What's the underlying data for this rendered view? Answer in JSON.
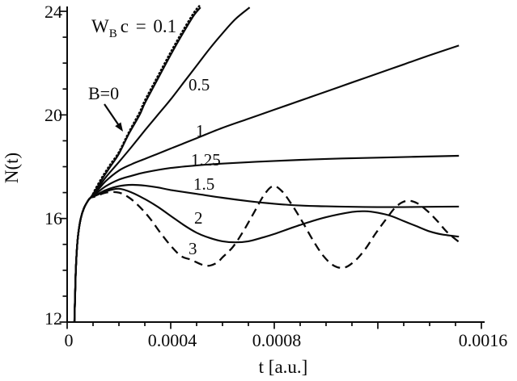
{
  "figure": {
    "background": "#ffffff",
    "ink_color": "#0a0a0a"
  },
  "chart_data": {
    "type": "line",
    "title": "",
    "xlabel": "t [a.u.]",
    "ylabel": "N(t)",
    "xlim": [
      0,
      0.0016
    ],
    "ylim": [
      12,
      24
    ],
    "grid": false,
    "legend_position": "inline-curve-labels",
    "x_major_ticks": [
      0,
      0.0004,
      0.0008,
      0.0012,
      0.0016
    ],
    "x_minor_step": 0.0001,
    "x_tick_labels": [
      "0",
      "0.0004",
      "0.0008",
      "0.0016"
    ],
    "x_labeled_tick_values": [
      0,
      0.0004,
      0.0008,
      0.0016
    ],
    "y_major_ticks": [
      12,
      16,
      20,
      24
    ],
    "y_minor_step": 1,
    "y_tick_labels": [
      "12",
      "16",
      "20",
      "24"
    ],
    "annotations": {
      "wb_equation": {
        "base": "W",
        "subscript": "B",
        "rest": "c = 0.1"
      },
      "b_zero": {
        "text": "B=0",
        "has_arrow": true
      }
    },
    "series": [
      {
        "key": "b0",
        "name": "B=0",
        "wbc": null,
        "style": "solid",
        "label": "B=0",
        "points": [
          [
            2.8e-05,
            12.0
          ],
          [
            3.05e-05,
            13.0
          ],
          [
            3.35e-05,
            14.0
          ],
          [
            3.75e-05,
            14.8
          ],
          [
            4.35e-05,
            15.45
          ],
          [
            5.25e-05,
            16.0
          ],
          [
            6.5e-05,
            16.4
          ],
          [
            8e-05,
            16.68
          ],
          [
            9e-05,
            16.8
          ],
          [
            0.00011,
            17.1
          ],
          [
            0.00014,
            17.6
          ],
          [
            0.00017,
            18.05
          ],
          [
            0.0002,
            18.5
          ],
          [
            0.00024,
            19.3
          ],
          [
            0.00028,
            20.0
          ],
          [
            0.0003,
            20.45
          ],
          [
            0.00034,
            21.2
          ],
          [
            0.00038,
            21.95
          ],
          [
            0.00041,
            22.5
          ],
          [
            0.00045,
            23.2
          ],
          [
            0.00049,
            23.85
          ],
          [
            0.000515,
            24.15
          ]
        ]
      },
      {
        "key": "wbc01",
        "name": "WBc = 0.1",
        "wbc": 0.1,
        "style": "dotted",
        "label": "0.1",
        "points": [
          [
            0.0001,
            16.95
          ],
          [
            0.00011,
            17.15
          ],
          [
            0.00014,
            17.67
          ],
          [
            0.00017,
            18.13
          ],
          [
            0.0002,
            18.56
          ],
          [
            0.00024,
            19.36
          ],
          [
            0.00028,
            20.1
          ],
          [
            0.0003,
            20.55
          ],
          [
            0.00034,
            21.3
          ],
          [
            0.00038,
            22.05
          ],
          [
            0.00041,
            22.6
          ],
          [
            0.00045,
            23.3
          ],
          [
            0.00049,
            23.95
          ],
          [
            0.00051,
            24.2
          ]
        ]
      },
      {
        "key": "wbc05",
        "name": "WBc = 0.5",
        "wbc": 0.5,
        "style": "solid",
        "label": "0.5",
        "points": [
          [
            2.8e-05,
            12.0
          ],
          [
            3.05e-05,
            13.0
          ],
          [
            3.35e-05,
            14.0
          ],
          [
            3.75e-05,
            14.8
          ],
          [
            4.35e-05,
            15.45
          ],
          [
            5.25e-05,
            16.0
          ],
          [
            6.5e-05,
            16.4
          ],
          [
            8e-05,
            16.68
          ],
          [
            9e-05,
            16.8
          ],
          [
            0.00011,
            17.05
          ],
          [
            0.00015,
            17.6
          ],
          [
            0.0002,
            18.18
          ],
          [
            0.00025,
            18.78
          ],
          [
            0.0003,
            19.4
          ],
          [
            0.00035,
            20.0
          ],
          [
            0.0004,
            20.6
          ],
          [
            0.00045,
            21.25
          ],
          [
            0.0005,
            21.9
          ],
          [
            0.00055,
            22.55
          ],
          [
            0.0006,
            23.15
          ],
          [
            0.00065,
            23.7
          ],
          [
            0.000705,
            24.15
          ]
        ]
      },
      {
        "key": "wbc1",
        "name": "WBc = 1",
        "wbc": 1,
        "style": "solid",
        "label": "1",
        "points": [
          [
            2.8e-05,
            12.0
          ],
          [
            3.05e-05,
            13.0
          ],
          [
            3.35e-05,
            14.0
          ],
          [
            3.75e-05,
            14.8
          ],
          [
            4.35e-05,
            15.45
          ],
          [
            5.25e-05,
            16.0
          ],
          [
            6.5e-05,
            16.4
          ],
          [
            8e-05,
            16.68
          ],
          [
            9e-05,
            16.8
          ],
          [
            0.00011,
            17.0
          ],
          [
            0.00015,
            17.45
          ],
          [
            0.0002,
            17.85
          ],
          [
            0.00025,
            18.1
          ],
          [
            0.0003,
            18.3
          ],
          [
            0.00035,
            18.5
          ],
          [
            0.0004,
            18.7
          ],
          [
            0.00045,
            18.9
          ],
          [
            0.0005,
            19.1
          ],
          [
            0.0006,
            19.5
          ],
          [
            0.0007,
            19.85
          ],
          [
            0.0008,
            20.2
          ],
          [
            0.0009,
            20.55
          ],
          [
            0.001,
            20.9
          ],
          [
            0.0011,
            21.25
          ],
          [
            0.0012,
            21.6
          ],
          [
            0.0013,
            21.95
          ],
          [
            0.0014,
            22.3
          ],
          [
            0.001513,
            22.68
          ]
        ]
      },
      {
        "key": "wbc125",
        "name": "WBc = 1.25",
        "wbc": 1.25,
        "style": "solid",
        "label": "1.25",
        "points": [
          [
            2.8e-05,
            12.0
          ],
          [
            3.05e-05,
            13.0
          ],
          [
            3.35e-05,
            14.0
          ],
          [
            3.75e-05,
            14.8
          ],
          [
            4.35e-05,
            15.45
          ],
          [
            5.25e-05,
            16.0
          ],
          [
            6.5e-05,
            16.4
          ],
          [
            8e-05,
            16.68
          ],
          [
            9e-05,
            16.8
          ],
          [
            0.00011,
            16.95
          ],
          [
            0.00015,
            17.25
          ],
          [
            0.0002,
            17.5
          ],
          [
            0.00025,
            17.65
          ],
          [
            0.0003,
            17.78
          ],
          [
            0.0004,
            17.95
          ],
          [
            0.0005,
            18.05
          ],
          [
            0.0006,
            18.12
          ],
          [
            0.0008,
            18.22
          ],
          [
            0.001,
            18.3
          ],
          [
            0.0012,
            18.35
          ],
          [
            0.001513,
            18.42
          ]
        ]
      },
      {
        "key": "wbc15",
        "name": "WBc = 1.5",
        "wbc": 1.5,
        "style": "solid",
        "label": "1.5",
        "points": [
          [
            2.8e-05,
            12.0
          ],
          [
            3.05e-05,
            13.0
          ],
          [
            3.35e-05,
            14.0
          ],
          [
            3.75e-05,
            14.8
          ],
          [
            4.35e-05,
            15.45
          ],
          [
            5.25e-05,
            16.0
          ],
          [
            6.5e-05,
            16.4
          ],
          [
            8e-05,
            16.68
          ],
          [
            9e-05,
            16.8
          ],
          [
            0.00011,
            16.9
          ],
          [
            0.00015,
            17.1
          ],
          [
            0.0002,
            17.25
          ],
          [
            0.00025,
            17.3
          ],
          [
            0.0003,
            17.27
          ],
          [
            0.00035,
            17.2
          ],
          [
            0.0004,
            17.1
          ],
          [
            0.0005,
            16.95
          ],
          [
            0.0006,
            16.8
          ],
          [
            0.0007,
            16.67
          ],
          [
            0.0008,
            16.57
          ],
          [
            0.0009,
            16.5
          ],
          [
            0.001,
            16.47
          ],
          [
            0.0011,
            16.45
          ],
          [
            0.0012,
            16.44
          ],
          [
            0.0013,
            16.44
          ],
          [
            0.0014,
            16.45
          ],
          [
            0.001513,
            16.46
          ]
        ]
      },
      {
        "key": "wbc2",
        "name": "WBc = 2",
        "wbc": 2,
        "style": "solid",
        "label": "2",
        "points": [
          [
            2.8e-05,
            12.0
          ],
          [
            3.05e-05,
            13.0
          ],
          [
            3.35e-05,
            14.0
          ],
          [
            3.75e-05,
            14.8
          ],
          [
            4.35e-05,
            15.45
          ],
          [
            5.25e-05,
            16.0
          ],
          [
            6.5e-05,
            16.4
          ],
          [
            8e-05,
            16.68
          ],
          [
            9e-05,
            16.8
          ],
          [
            0.00011,
            16.88
          ],
          [
            0.00015,
            17.05
          ],
          [
            0.0002,
            17.15
          ],
          [
            0.00025,
            17.0
          ],
          [
            0.0003,
            16.75
          ],
          [
            0.00035,
            16.45
          ],
          [
            0.0004,
            16.1
          ],
          [
            0.00045,
            15.75
          ],
          [
            0.0005,
            15.45
          ],
          [
            0.00055,
            15.25
          ],
          [
            0.0006,
            15.12
          ],
          [
            0.00065,
            15.08
          ],
          [
            0.0007,
            15.12
          ],
          [
            0.00075,
            15.25
          ],
          [
            0.0008,
            15.4
          ],
          [
            0.0009,
            15.75
          ],
          [
            0.001,
            16.05
          ],
          [
            0.0011,
            16.25
          ],
          [
            0.00115,
            16.28
          ],
          [
            0.0012,
            16.22
          ],
          [
            0.00125,
            16.1
          ],
          [
            0.0013,
            15.9
          ],
          [
            0.00135,
            15.7
          ],
          [
            0.0014,
            15.5
          ],
          [
            0.00145,
            15.38
          ],
          [
            0.001513,
            15.3
          ]
        ]
      },
      {
        "key": "wbc3",
        "name": "WBc = 3",
        "wbc": 3,
        "style": "dashed",
        "label": "3",
        "points": [
          [
            2.8e-05,
            12.0
          ],
          [
            3.05e-05,
            13.0
          ],
          [
            3.35e-05,
            14.0
          ],
          [
            3.75e-05,
            14.8
          ],
          [
            4.35e-05,
            15.45
          ],
          [
            5.25e-05,
            16.0
          ],
          [
            6.5e-05,
            16.4
          ],
          [
            8e-05,
            16.68
          ],
          [
            9e-05,
            16.8
          ],
          [
            0.00011,
            16.85
          ],
          [
            0.00015,
            17.0
          ],
          [
            0.0002,
            17.0
          ],
          [
            0.00024,
            16.8
          ],
          [
            0.00028,
            16.45
          ],
          [
            0.00032,
            16.0
          ],
          [
            0.00036,
            15.45
          ],
          [
            0.0004,
            14.95
          ],
          [
            0.00044,
            14.55
          ],
          [
            0.00048,
            14.4
          ],
          [
            0.00052,
            14.22
          ],
          [
            0.00055,
            14.18
          ],
          [
            0.00058,
            14.3
          ],
          [
            0.0006,
            14.5
          ],
          [
            0.00064,
            14.9
          ],
          [
            0.00068,
            15.5
          ],
          [
            0.00072,
            16.2
          ],
          [
            0.00076,
            16.9
          ],
          [
            0.000795,
            17.25
          ],
          [
            0.00083,
            17.05
          ],
          [
            0.00087,
            16.5
          ],
          [
            0.00091,
            15.85
          ],
          [
            0.00095,
            15.15
          ],
          [
            0.00099,
            14.55
          ],
          [
            0.00103,
            14.18
          ],
          [
            0.00107,
            14.1
          ],
          [
            0.00111,
            14.35
          ],
          [
            0.00115,
            14.8
          ],
          [
            0.00119,
            15.4
          ],
          [
            0.00123,
            15.95
          ],
          [
            0.00127,
            16.45
          ],
          [
            0.00131,
            16.68
          ],
          [
            0.00135,
            16.6
          ],
          [
            0.00139,
            16.3
          ],
          [
            0.00143,
            15.9
          ],
          [
            0.00147,
            15.45
          ],
          [
            0.001525,
            15.0
          ]
        ]
      }
    ]
  }
}
